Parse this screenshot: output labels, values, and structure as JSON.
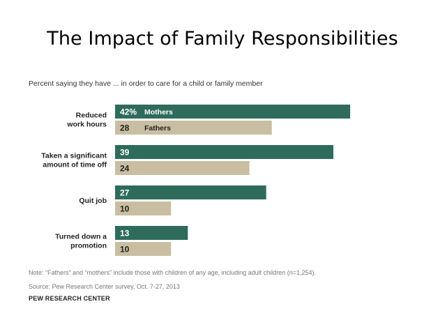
{
  "slide": {
    "title": "The Impact of Family Responsibilities"
  },
  "chart_data": {
    "type": "bar",
    "orientation": "horizontal",
    "title": "Percent saying they have ... in order to care for a child or family member",
    "categories": [
      [
        "Reduced",
        "work hours"
      ],
      [
        "Taken a significant",
        "amount of time off"
      ],
      [
        "Quit job"
      ],
      [
        "Turned down a",
        "promotion"
      ]
    ],
    "series": [
      {
        "name": "Mothers",
        "color": "#2e6b5a",
        "values": [
          42,
          39,
          27,
          13
        ]
      },
      {
        "name": "Fathers",
        "color": "#c9bea2",
        "values": [
          28,
          24,
          10,
          10
        ]
      }
    ],
    "first_value_suffix": "%",
    "xlim": [
      0,
      42
    ],
    "legend_placement": "inline-first-category",
    "grid": false
  },
  "footer": {
    "note": "Note: “Fathers” and “mothers” include those with children of any age, including adult children (n=1,254).",
    "source": "Source: Pew Research Center survey, Oct. 7-27, 2013",
    "org": "PEW RESEARCH CENTER"
  }
}
